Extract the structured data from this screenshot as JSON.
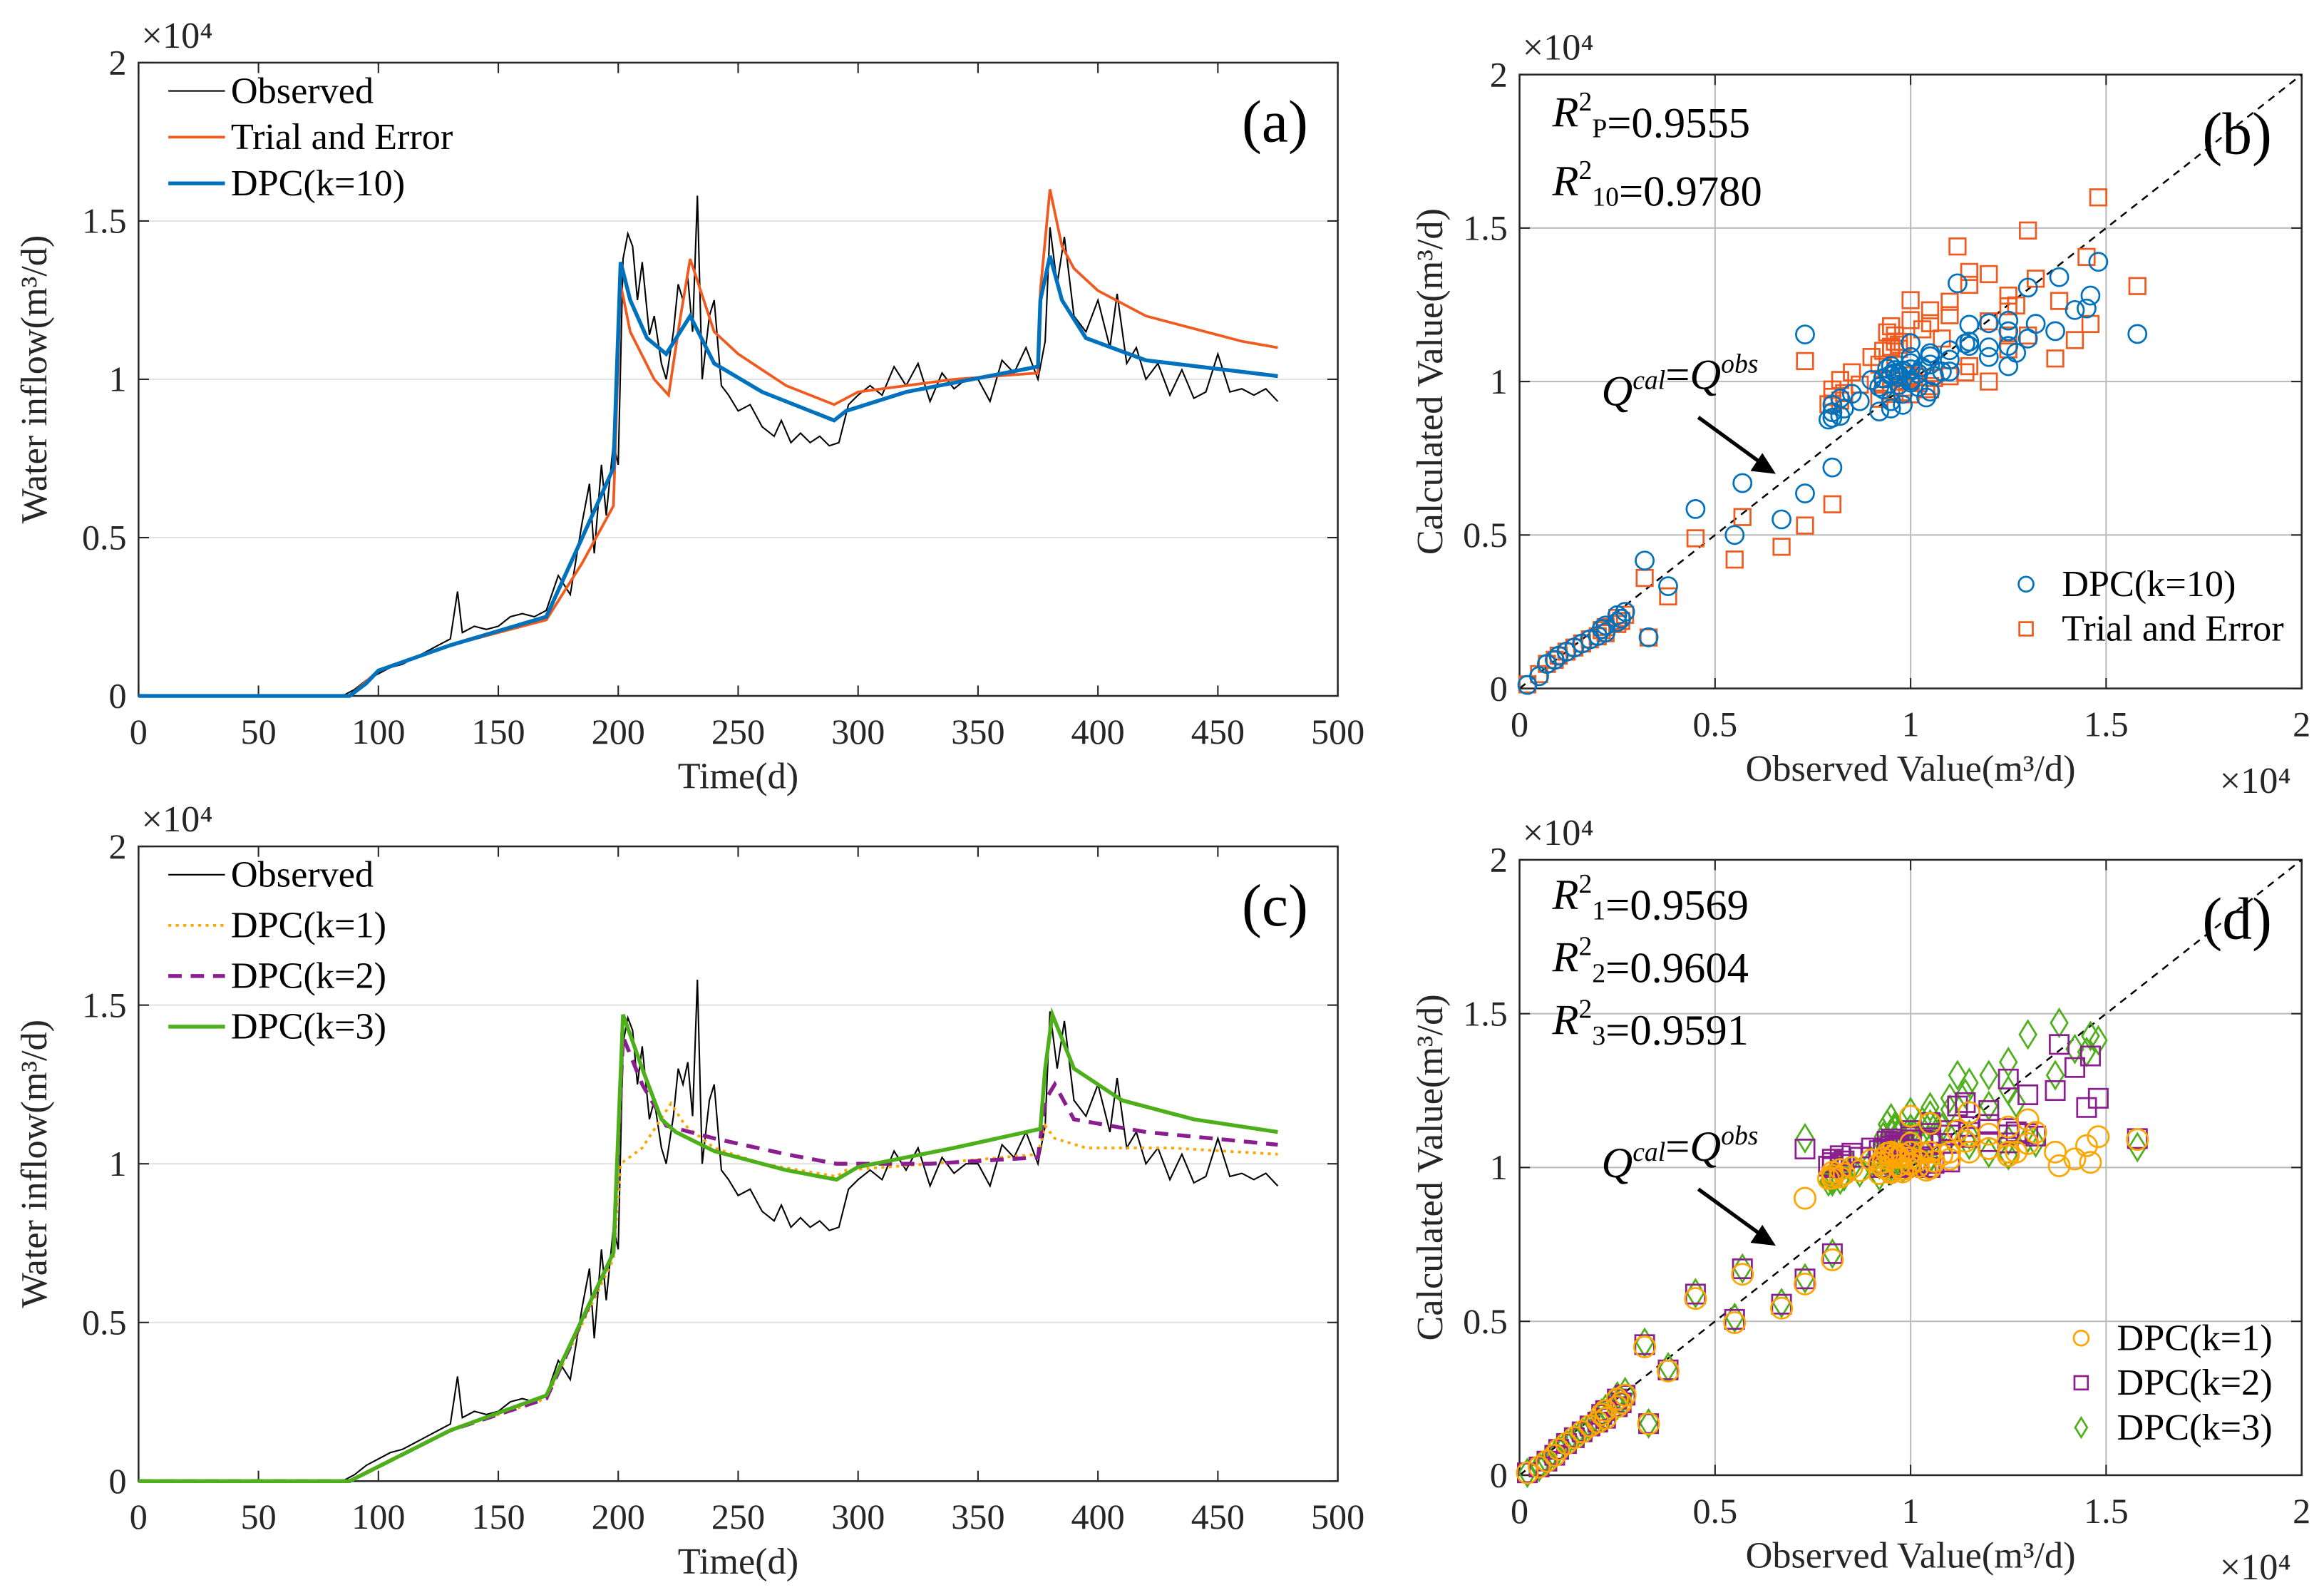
{
  "chart_data": [
    {
      "panel": "a",
      "type": "line",
      "label": "(a)",
      "xlabel": "Time(d)",
      "ylabel": "Water inflow(m³/d)",
      "yexp": "×10⁴",
      "xlim": [
        0,
        500
      ],
      "ylim": [
        0,
        20000
      ],
      "xticks": [
        "0",
        "50",
        "100",
        "150",
        "200",
        "250",
        "300",
        "350",
        "400",
        "450",
        "500"
      ],
      "yticks": [
        "0",
        "0.5",
        "1",
        "1.5",
        "2"
      ],
      "grid": "horizontal",
      "legend_position": "top-left",
      "series": [
        {
          "name": "Observed",
          "color": "#000000",
          "ref": "observed"
        },
        {
          "name": "Trial and Error",
          "color": "#f05a1e",
          "points": [
            [
              0,
              0
            ],
            [
              88,
              0
            ],
            [
              100,
              800
            ],
            [
              130,
              1600
            ],
            [
              170,
              2400
            ],
            [
              185,
              4200
            ],
            [
              198,
              6000
            ],
            [
              201,
              13000
            ],
            [
              205,
              11500
            ],
            [
              215,
              10000
            ],
            [
              221,
              9500
            ],
            [
              226,
              12000
            ],
            [
              230,
              13800
            ],
            [
              240,
              11500
            ],
            [
              250,
              10800
            ],
            [
              260,
              10300
            ],
            [
              270,
              9800
            ],
            [
              280,
              9500
            ],
            [
              290,
              9200
            ],
            [
              295,
              9400
            ],
            [
              300,
              9600
            ],
            [
              320,
              9800
            ],
            [
              340,
              10000
            ],
            [
              375,
              10200
            ],
            [
              376,
              12800
            ],
            [
              380,
              16000
            ],
            [
              385,
              14200
            ],
            [
              390,
              13500
            ],
            [
              400,
              12800
            ],
            [
              420,
              12000
            ],
            [
              440,
              11600
            ],
            [
              460,
              11200
            ],
            [
              475,
              11000
            ]
          ]
        },
        {
          "name": "DPC(k=10)",
          "color": "#0072bd",
          "points": [
            [
              0,
              0
            ],
            [
              88,
              0
            ],
            [
              95,
              400
            ],
            [
              100,
              800
            ],
            [
              130,
              1600
            ],
            [
              170,
              2500
            ],
            [
              185,
              5000
            ],
            [
              198,
              7200
            ],
            [
              201,
              13700
            ],
            [
              205,
              12500
            ],
            [
              212,
              11300
            ],
            [
              220,
              10800
            ],
            [
              230,
              12000
            ],
            [
              240,
              10500
            ],
            [
              260,
              9600
            ],
            [
              290,
              8700
            ],
            [
              295,
              9000
            ],
            [
              320,
              9600
            ],
            [
              375,
              10400
            ],
            [
              376,
              12500
            ],
            [
              380,
              13900
            ],
            [
              385,
              12500
            ],
            [
              395,
              11300
            ],
            [
              420,
              10600
            ],
            [
              475,
              10100
            ]
          ]
        }
      ]
    },
    {
      "panel": "b",
      "type": "scatter",
      "label": "(b)",
      "xlabel": "Observed Value(m³/d)",
      "ylabel": "Calculated Value(m³/d)",
      "xexp": "×10⁴",
      "yexp": "×10⁴",
      "xlim": [
        0,
        20000
      ],
      "ylim": [
        0,
        20000
      ],
      "xticks": [
        "0",
        "0.5",
        "1",
        "1.5",
        "2"
      ],
      "yticks": [
        "0",
        "0.5",
        "1",
        "1.5",
        "2"
      ],
      "grid": "both",
      "legend_position": "bottom-right",
      "reference_line": "y = x",
      "annotation": {
        "q1": "Q",
        "sup1": "cal",
        "eq": "=",
        "q2": "Q",
        "sup2": "obs"
      },
      "stats": [
        {
          "r": "R",
          "sup": "2",
          "sub": "P",
          "value": "=0.9555"
        },
        {
          "r": "R",
          "sup": "2",
          "sub": "10",
          "value": "=0.9780"
        }
      ],
      "series": [
        {
          "name": "DPC(k=10)",
          "marker": "circle",
          "color": "#0072bd",
          "x_from": "observed",
          "y_from": "DPC(k=10)"
        },
        {
          "name": "Trial and Error",
          "marker": "square",
          "color": "#f05a1e",
          "x_from": "observed",
          "y_from": "Trial and Error"
        }
      ]
    },
    {
      "panel": "c",
      "type": "line",
      "label": "(c)",
      "xlabel": "Time(d)",
      "ylabel": "Water inflow(m³/d)",
      "yexp": "×10⁴",
      "xlim": [
        0,
        500
      ],
      "ylim": [
        0,
        20000
      ],
      "xticks": [
        "0",
        "50",
        "100",
        "150",
        "200",
        "250",
        "300",
        "350",
        "400",
        "450",
        "500"
      ],
      "yticks": [
        "0",
        "0.5",
        "1",
        "1.5",
        "2"
      ],
      "grid": "horizontal",
      "legend_position": "top-left",
      "series": [
        {
          "name": "Observed",
          "color": "#000000",
          "ref": "observed"
        },
        {
          "name": "DPC(k=1)",
          "color": "#ffa500",
          "dash": "dotted",
          "points": [
            [
              0,
              0
            ],
            [
              88,
              0
            ],
            [
              130,
              1600
            ],
            [
              170,
              2600
            ],
            [
              198,
              7000
            ],
            [
              201,
              10000
            ],
            [
              210,
              10500
            ],
            [
              222,
              11900
            ],
            [
              228,
              11200
            ],
            [
              240,
              10500
            ],
            [
              260,
              10000
            ],
            [
              291,
              9600
            ],
            [
              295,
              9800
            ],
            [
              330,
              10000
            ],
            [
              375,
              10300
            ],
            [
              378,
              11200
            ],
            [
              382,
              10800
            ],
            [
              395,
              10500
            ],
            [
              430,
              10500
            ],
            [
              475,
              10300
            ]
          ]
        },
        {
          "name": "DPC(k=2)",
          "color": "#8b1e8f",
          "dash": "dashed",
          "points": [
            [
              0,
              0
            ],
            [
              88,
              0
            ],
            [
              130,
              1600
            ],
            [
              170,
              2600
            ],
            [
              198,
              7200
            ],
            [
              202,
              14000
            ],
            [
              210,
              12500
            ],
            [
              220,
              11200
            ],
            [
              240,
              10800
            ],
            [
              270,
              10300
            ],
            [
              291,
              10000
            ],
            [
              330,
              10000
            ],
            [
              375,
              10200
            ],
            [
              378,
              12000
            ],
            [
              382,
              12500
            ],
            [
              390,
              11400
            ],
            [
              420,
              11000
            ],
            [
              475,
              10600
            ]
          ]
        },
        {
          "name": "DPC(k=3)",
          "color": "#4daf1a",
          "points": [
            [
              0,
              0
            ],
            [
              88,
              0
            ],
            [
              130,
              1600
            ],
            [
              170,
              2700
            ],
            [
              198,
              7200
            ],
            [
              202,
              14700
            ],
            [
              210,
              13000
            ],
            [
              218,
              11400
            ],
            [
              224,
              11000
            ],
            [
              240,
              10400
            ],
            [
              270,
              9800
            ],
            [
              291,
              9500
            ],
            [
              300,
              9900
            ],
            [
              340,
              10500
            ],
            [
              376,
              11100
            ],
            [
              378,
              13000
            ],
            [
              381,
              14700
            ],
            [
              390,
              13000
            ],
            [
              410,
              12000
            ],
            [
              440,
              11400
            ],
            [
              475,
              11000
            ]
          ]
        }
      ]
    },
    {
      "panel": "d",
      "type": "scatter",
      "label": "(d)",
      "xlabel": "Observed Value(m³/d)",
      "ylabel": "Calculated Value(m³/d)",
      "xexp": "×10⁴",
      "yexp": "×10⁴",
      "xlim": [
        0,
        20000
      ],
      "ylim": [
        0,
        20000
      ],
      "xticks": [
        "0",
        "0.5",
        "1",
        "1.5",
        "2"
      ],
      "yticks": [
        "0",
        "0.5",
        "1",
        "1.5",
        "2"
      ],
      "grid": "both",
      "legend_position": "bottom-right",
      "reference_line": "y = x",
      "annotation": {
        "q1": "Q",
        "sup1": "cal",
        "eq": "=",
        "q2": "Q",
        "sup2": "obs"
      },
      "stats": [
        {
          "r": "R",
          "sup": "2",
          "sub": "1",
          "value": "=0.9569"
        },
        {
          "r": "R",
          "sup": "2",
          "sub": "2",
          "value": "=0.9604"
        },
        {
          "r": "R",
          "sup": "2",
          "sub": "3",
          "value": "=0.9591"
        }
      ],
      "series": [
        {
          "name": "DPC(k=1)",
          "marker": "circle",
          "color": "#ffa500",
          "x_from": "observed",
          "y_from": "DPC(k=1)"
        },
        {
          "name": "DPC(k=2)",
          "marker": "square",
          "color": "#8b1e8f",
          "x_from": "observed",
          "y_from": "DPC(k=2)"
        },
        {
          "name": "DPC(k=3)",
          "marker": "diamond",
          "color": "#4daf1a",
          "x_from": "observed",
          "y_from": "DPC(k=3)"
        }
      ]
    }
  ],
  "observed": [
    [
      0,
      0
    ],
    [
      85,
      0
    ],
    [
      90,
      200
    ],
    [
      95,
      500
    ],
    [
      100,
      700
    ],
    [
      105,
      900
    ],
    [
      110,
      1000
    ],
    [
      115,
      1200
    ],
    [
      120,
      1400
    ],
    [
      125,
      1600
    ],
    [
      130,
      1800
    ],
    [
      133,
      3300
    ],
    [
      135,
      2000
    ],
    [
      140,
      2200
    ],
    [
      145,
      2100
    ],
    [
      150,
      2200
    ],
    [
      155,
      2500
    ],
    [
      160,
      2600
    ],
    [
      165,
      2500
    ],
    [
      170,
      2700
    ],
    [
      175,
      3800
    ],
    [
      180,
      3200
    ],
    [
      185,
      5500
    ],
    [
      188,
      6700
    ],
    [
      190,
      4500
    ],
    [
      193,
      7300
    ],
    [
      195,
      5700
    ],
    [
      198,
      8000
    ],
    [
      200,
      7300
    ],
    [
      202,
      13800
    ],
    [
      204,
      14600
    ],
    [
      206,
      14200
    ],
    [
      208,
      12500
    ],
    [
      210,
      13700
    ],
    [
      213,
      11400
    ],
    [
      215,
      12000
    ],
    [
      218,
      10500
    ],
    [
      220,
      10000
    ],
    [
      223,
      11500
    ],
    [
      225,
      13000
    ],
    [
      227,
      12500
    ],
    [
      229,
      13200
    ],
    [
      231,
      11500
    ],
    [
      233,
      15800
    ],
    [
      235,
      10000
    ],
    [
      238,
      12000
    ],
    [
      240,
      12500
    ],
    [
      243,
      9800
    ],
    [
      246,
      9500
    ],
    [
      250,
      9000
    ],
    [
      255,
      9200
    ],
    [
      260,
      8500
    ],
    [
      265,
      8200
    ],
    [
      268,
      8700
    ],
    [
      272,
      8000
    ],
    [
      276,
      8300
    ],
    [
      280,
      8000
    ],
    [
      284,
      8200
    ],
    [
      288,
      7900
    ],
    [
      292,
      8000
    ],
    [
      296,
      9200
    ],
    [
      300,
      9500
    ],
    [
      305,
      9800
    ],
    [
      310,
      9500
    ],
    [
      315,
      10400
    ],
    [
      320,
      9800
    ],
    [
      325,
      10500
    ],
    [
      330,
      9300
    ],
    [
      335,
      10200
    ],
    [
      340,
      9700
    ],
    [
      345,
      10000
    ],
    [
      350,
      10000
    ],
    [
      355,
      9300
    ],
    [
      360,
      10600
    ],
    [
      365,
      10200
    ],
    [
      370,
      11000
    ],
    [
      375,
      10000
    ],
    [
      378,
      11200
    ],
    [
      380,
      14800
    ],
    [
      383,
      13000
    ],
    [
      386,
      14500
    ],
    [
      390,
      12000
    ],
    [
      395,
      11500
    ],
    [
      400,
      12500
    ],
    [
      405,
      11000
    ],
    [
      408,
      12700
    ],
    [
      412,
      10500
    ],
    [
      416,
      11000
    ],
    [
      420,
      10000
    ],
    [
      425,
      10500
    ],
    [
      430,
      9500
    ],
    [
      435,
      10300
    ],
    [
      440,
      9400
    ],
    [
      445,
      9600
    ],
    [
      450,
      10800
    ],
    [
      455,
      9600
    ],
    [
      460,
      9700
    ],
    [
      465,
      9500
    ],
    [
      470,
      9700
    ],
    [
      475,
      9300
    ]
  ]
}
